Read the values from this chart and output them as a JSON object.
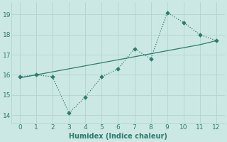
{
  "xlabel": "Humidex (Indice chaleur)",
  "x": [
    0,
    1,
    2,
    3,
    4,
    5,
    6,
    7,
    8,
    9,
    10,
    11,
    12
  ],
  "y_zigzag": [
    15.9,
    16.0,
    15.9,
    14.1,
    14.9,
    15.9,
    16.3,
    17.3,
    16.8,
    19.1,
    18.6,
    18.0,
    17.7
  ],
  "y_trend": [
    15.85,
    16.0,
    16.15,
    16.3,
    16.45,
    16.6,
    16.75,
    16.9,
    17.05,
    17.2,
    17.35,
    17.5,
    17.7
  ],
  "line_color": "#2e7b6e",
  "bg_color": "#cce8e4",
  "grid_color": "#b0d4d0",
  "ylim": [
    13.6,
    19.6
  ],
  "xlim": [
    -0.5,
    12.5
  ],
  "yticks": [
    14,
    15,
    16,
    17,
    18,
    19
  ],
  "xticks": [
    0,
    1,
    2,
    3,
    4,
    5,
    6,
    7,
    8,
    9,
    10,
    11,
    12
  ],
  "tick_fontsize": 6.5,
  "xlabel_fontsize": 7.0
}
